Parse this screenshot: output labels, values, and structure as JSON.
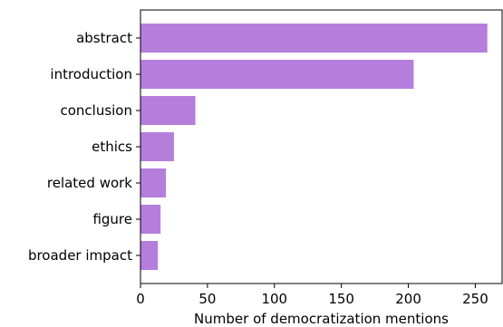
{
  "chart_data": {
    "type": "bar",
    "orientation": "horizontal",
    "categories": [
      "abstract",
      "introduction",
      "conclusion",
      "ethics",
      "related work",
      "figure",
      "broader impact"
    ],
    "values": [
      259,
      204,
      41,
      25,
      19,
      15,
      13
    ],
    "xlabel": "Number of democratization mentions",
    "ylabel": "",
    "title": "",
    "xlim": [
      0,
      270
    ],
    "xticks": [
      "0",
      "50",
      "100",
      "150",
      "200",
      "250"
    ],
    "grid": false,
    "legend": "none",
    "bar_color": "#b57edc"
  }
}
